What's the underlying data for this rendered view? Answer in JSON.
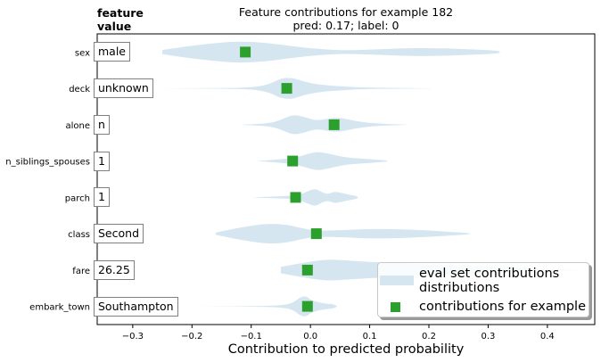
{
  "chart_data": {
    "type": "violin",
    "title": "Feature contributions for example 182",
    "subtitle": "pred: 0.17; label: 0",
    "xlabel": "Contribution to predicted probability",
    "header_line1": "feature",
    "header_line2": "value",
    "xlim": [
      -0.36,
      0.48
    ],
    "xticks": [
      -0.3,
      -0.2,
      -0.1,
      0.0,
      0.1,
      0.2,
      0.3,
      0.4
    ],
    "xtick_labels": [
      "−0.3",
      "−0.2",
      "−0.1",
      "0.0",
      "0.1",
      "0.2",
      "0.3",
      "0.4"
    ],
    "colors": {
      "violin": "#d5e6f0",
      "point": "#2ca02c"
    },
    "features": [
      {
        "name": "sex",
        "value": "male",
        "contribution": -0.11,
        "violin": [
          [
            -0.25,
            0.2
          ],
          [
            -0.2,
            0.6
          ],
          [
            -0.15,
            0.9
          ],
          [
            -0.12,
            1.0
          ],
          [
            -0.08,
            0.9
          ],
          [
            -0.03,
            0.55
          ],
          [
            0.0,
            0.35
          ],
          [
            0.05,
            0.15
          ],
          [
            0.1,
            0.22
          ],
          [
            0.15,
            0.35
          ],
          [
            0.2,
            0.38
          ],
          [
            0.25,
            0.3
          ],
          [
            0.3,
            0.18
          ],
          [
            0.32,
            0.1
          ]
        ]
      },
      {
        "name": "deck",
        "value": "unknown",
        "contribution": -0.04,
        "violin": [
          [
            -0.26,
            0.0
          ],
          [
            -0.15,
            0.03
          ],
          [
            -0.1,
            0.08
          ],
          [
            -0.07,
            0.35
          ],
          [
            -0.05,
            0.95
          ],
          [
            -0.03,
            1.0
          ],
          [
            -0.01,
            0.6
          ],
          [
            0.02,
            0.3
          ],
          [
            0.08,
            0.08
          ],
          [
            0.14,
            0.04
          ],
          [
            0.21,
            0.0
          ]
        ]
      },
      {
        "name": "alone",
        "value": "n",
        "contribution": 0.04,
        "violin": [
          [
            -0.12,
            0.0
          ],
          [
            -0.07,
            0.12
          ],
          [
            -0.05,
            0.45
          ],
          [
            -0.03,
            0.95
          ],
          [
            -0.01,
            0.75
          ],
          [
            0.01,
            0.35
          ],
          [
            0.04,
            0.7
          ],
          [
            0.06,
            0.55
          ],
          [
            0.08,
            0.3
          ],
          [
            0.11,
            0.12
          ],
          [
            0.15,
            0.03
          ],
          [
            0.17,
            0.0
          ]
        ]
      },
      {
        "name": "n_siblings_spouses",
        "value": "1",
        "contribution": -0.03,
        "violin": [
          [
            -0.09,
            0.0
          ],
          [
            -0.06,
            0.12
          ],
          [
            -0.03,
            0.28
          ],
          [
            -0.01,
            0.55
          ],
          [
            0.01,
            0.9
          ],
          [
            0.03,
            0.7
          ],
          [
            0.06,
            0.32
          ],
          [
            0.09,
            0.22
          ],
          [
            0.12,
            0.1
          ],
          [
            0.13,
            0.05
          ]
        ]
      },
      {
        "name": "parch",
        "value": "1",
        "contribution": -0.025,
        "violin": [
          [
            -0.1,
            0.0
          ],
          [
            -0.06,
            0.08
          ],
          [
            -0.02,
            0.18
          ],
          [
            0.0,
            0.7
          ],
          [
            0.01,
            0.8
          ],
          [
            0.02,
            0.45
          ],
          [
            0.03,
            0.3
          ],
          [
            0.04,
            0.55
          ],
          [
            0.05,
            0.45
          ],
          [
            0.07,
            0.2
          ],
          [
            0.08,
            0.1
          ]
        ]
      },
      {
        "name": "class",
        "value": "Second",
        "contribution": 0.01,
        "violin": [
          [
            -0.16,
            0.1
          ],
          [
            -0.13,
            0.45
          ],
          [
            -0.1,
            0.75
          ],
          [
            -0.07,
            0.95
          ],
          [
            -0.04,
            0.85
          ],
          [
            -0.01,
            0.45
          ],
          [
            0.01,
            0.28
          ],
          [
            0.05,
            0.32
          ],
          [
            0.1,
            0.45
          ],
          [
            0.15,
            0.42
          ],
          [
            0.2,
            0.3
          ],
          [
            0.25,
            0.12
          ],
          [
            0.27,
            0.05
          ]
        ]
      },
      {
        "name": "fare",
        "value": "26.25",
        "contribution": -0.005,
        "violin": [
          [
            -0.05,
            0.3
          ],
          [
            -0.03,
            0.5
          ],
          [
            0.0,
            0.8
          ],
          [
            0.03,
            1.0
          ],
          [
            0.06,
            0.9
          ],
          [
            0.1,
            0.75
          ],
          [
            0.15,
            0.65
          ],
          [
            0.2,
            0.55
          ],
          [
            0.25,
            0.45
          ],
          [
            0.3,
            0.32
          ],
          [
            0.35,
            0.22
          ],
          [
            0.4,
            0.12
          ],
          [
            0.45,
            0.05
          ]
        ]
      },
      {
        "name": "embark_town",
        "value": "Southampton",
        "contribution": -0.005,
        "violin": [
          [
            -0.2,
            0.0
          ],
          [
            -0.1,
            0.02
          ],
          [
            -0.05,
            0.08
          ],
          [
            -0.03,
            0.3
          ],
          [
            -0.015,
            0.95
          ],
          [
            -0.005,
            0.9
          ],
          [
            0.0,
            0.6
          ],
          [
            0.02,
            0.28
          ],
          [
            0.04,
            0.2
          ],
          [
            0.045,
            0.0
          ]
        ]
      }
    ],
    "legend": {
      "entries": [
        "eval set contributions distributions",
        "contributions for example"
      ],
      "placement": "lower-right"
    }
  }
}
